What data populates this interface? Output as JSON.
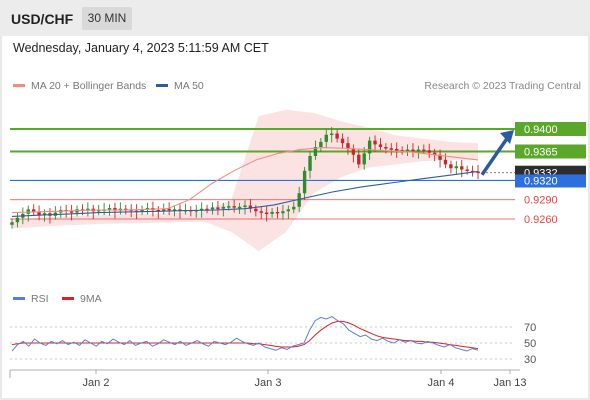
{
  "header": {
    "symbol": "USD/CHF",
    "timeframe": "30 MIN"
  },
  "timestamp": "Wednesday, January 4, 2023 5:11:59 AM CET",
  "legend": {
    "items": [
      {
        "label": "MA 20 + Bollinger Bands",
        "color": "#f28b82"
      },
      {
        "label": "MA 50",
        "color": "#2e5c9e"
      }
    ],
    "credit": "Research © 2023 Trading Central"
  },
  "rsi_legend": {
    "items": [
      {
        "label": "RSI",
        "color": "#5b7fd6"
      },
      {
        "label": "9MA",
        "color": "#e02020"
      }
    ]
  },
  "colors": {
    "resistance": "#5aa72a",
    "support": "#e54444",
    "pivot": "#2e6fe0",
    "arrow": "#2b5aa0",
    "up": "#2e8b2e",
    "down": "#c62828"
  },
  "chart_data": [
    {
      "type": "candlestick",
      "title": "",
      "x_ticks": [
        "Jan 2",
        "Jan 3",
        "Jan 4",
        "Jan 13"
      ],
      "ylim": [
        0.9215,
        0.9445
      ],
      "current_price": "0.9332",
      "levels": [
        {
          "value": 0.94,
          "label": "0.9400",
          "kind": "resistance"
        },
        {
          "value": 0.9365,
          "label": "0.9365",
          "kind": "resistance"
        },
        {
          "value": 0.932,
          "label": "0.9320",
          "kind": "pivot"
        },
        {
          "value": 0.929,
          "label": "0.9290",
          "kind": "support"
        },
        {
          "value": 0.926,
          "label": "0.9260",
          "kind": "support"
        }
      ],
      "forecast_arrow": {
        "from": 0.9332,
        "to": 0.94
      },
      "close_path": [
        0.9255,
        0.9262,
        0.9268,
        0.9275,
        0.9271,
        0.9266,
        0.9269,
        0.9265,
        0.927,
        0.9274,
        0.9272,
        0.927,
        0.9275,
        0.9274,
        0.9276,
        0.9272,
        0.9274,
        0.9275,
        0.9277,
        0.9273,
        0.9276,
        0.9275,
        0.9273,
        0.9272,
        0.9275,
        0.9277,
        0.9274,
        0.9273,
        0.9276,
        0.9274,
        0.9275,
        0.9273,
        0.9274,
        0.9272,
        0.9274,
        0.9276,
        0.9275,
        0.9278,
        0.9276,
        0.9279,
        0.928,
        0.9278,
        0.9279,
        0.9281,
        0.9276,
        0.9272,
        0.927,
        0.9268,
        0.9271,
        0.9269,
        0.9272,
        0.9275,
        0.9279,
        0.93,
        0.9335,
        0.9358,
        0.9372,
        0.938,
        0.9391,
        0.9393,
        0.9385,
        0.9378,
        0.937,
        0.936,
        0.9345,
        0.9362,
        0.9382,
        0.9376,
        0.9372,
        0.937,
        0.9369,
        0.9367,
        0.9366,
        0.9368,
        0.9366,
        0.9368,
        0.9367,
        0.9363,
        0.936,
        0.9352,
        0.9345,
        0.9339,
        0.9342,
        0.9337,
        0.9335,
        0.9334,
        0.9332
      ],
      "ma20_path": [
        0.927,
        0.9271,
        0.9272,
        0.9273,
        0.9274,
        0.9274,
        0.9275,
        0.9276,
        0.929,
        0.9315,
        0.9335,
        0.9352,
        0.9362,
        0.9368,
        0.9371,
        0.937,
        0.9368,
        0.9366,
        0.9364,
        0.936,
        0.9356,
        0.9352
      ],
      "ma50_path": [
        0.9264,
        0.9266,
        0.9268,
        0.927,
        0.9271,
        0.9272,
        0.9273,
        0.9274,
        0.9276,
        0.9282,
        0.9292,
        0.9302,
        0.931,
        0.9316,
        0.9322,
        0.9328,
        0.9334
      ]
    },
    {
      "type": "line",
      "title": "RSI",
      "y_ticks": [
        "70",
        "50",
        "30"
      ],
      "ylim": [
        15,
        85
      ],
      "rsi": [
        40,
        48,
        52,
        46,
        55,
        50,
        47,
        52,
        49,
        53,
        48,
        51,
        47,
        54,
        50,
        46,
        52,
        49,
        55,
        51,
        48,
        53,
        47,
        50,
        52,
        46,
        49,
        54,
        51,
        48,
        52,
        47,
        50,
        53,
        49,
        46,
        52,
        50,
        48,
        51,
        56,
        52,
        49,
        47,
        50,
        45,
        43,
        41,
        44,
        42,
        46,
        48,
        50,
        66,
        78,
        82,
        80,
        83,
        78,
        74,
        66,
        62,
        58,
        60,
        55,
        53,
        56,
        52,
        50,
        54,
        51,
        53,
        50,
        49,
        52,
        50,
        47,
        45,
        48,
        44,
        42,
        40,
        43,
        41
      ],
      "ma9": [
        48,
        49,
        50,
        50,
        50,
        50,
        50,
        50,
        50,
        50,
        50,
        50,
        50,
        50,
        50,
        50,
        50,
        50,
        50,
        50,
        50,
        50,
        50,
        50,
        50,
        50,
        50,
        50,
        50,
        50,
        50,
        50,
        50,
        50,
        50,
        50,
        50,
        50,
        50,
        50,
        50,
        50,
        50,
        49,
        49,
        48,
        47,
        46,
        45,
        45,
        45,
        46,
        48,
        53,
        60,
        66,
        71,
        75,
        77,
        77,
        75,
        72,
        68,
        65,
        62,
        59,
        57,
        56,
        55,
        54,
        53,
        53,
        52,
        52,
        51,
        51,
        50,
        49,
        48,
        47,
        46,
        45,
        44,
        43
      ]
    }
  ]
}
